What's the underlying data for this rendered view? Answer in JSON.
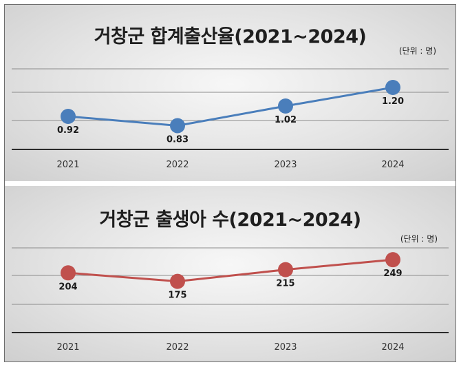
{
  "chart_data": [
    {
      "type": "line",
      "title": "거창군 합계출산율(2021~2024)",
      "unit_note": "(단위 : 명)",
      "categories": [
        "2021",
        "2022",
        "2023",
        "2024"
      ],
      "series": [
        {
          "values": [
            0.92,
            0.83,
            1.02,
            1.2
          ]
        }
      ],
      "data_labels": [
        "0.92",
        "0.83",
        "1.02",
        "1.20"
      ],
      "ylim": [
        0.6,
        1.6
      ],
      "grid": true,
      "color": "#4a7ebb"
    },
    {
      "type": "line",
      "title": "거창군 출생아 수(2021~2024)",
      "unit_note": "(단위 : 명)",
      "categories": [
        "2021",
        "2022",
        "2023",
        "2024"
      ],
      "series": [
        {
          "values": [
            204,
            175,
            215,
            249
          ]
        }
      ],
      "data_labels": [
        "204",
        "175",
        "215",
        "249"
      ],
      "ylim": [
        0,
        360
      ],
      "grid": true,
      "color": "#c0504d"
    }
  ]
}
